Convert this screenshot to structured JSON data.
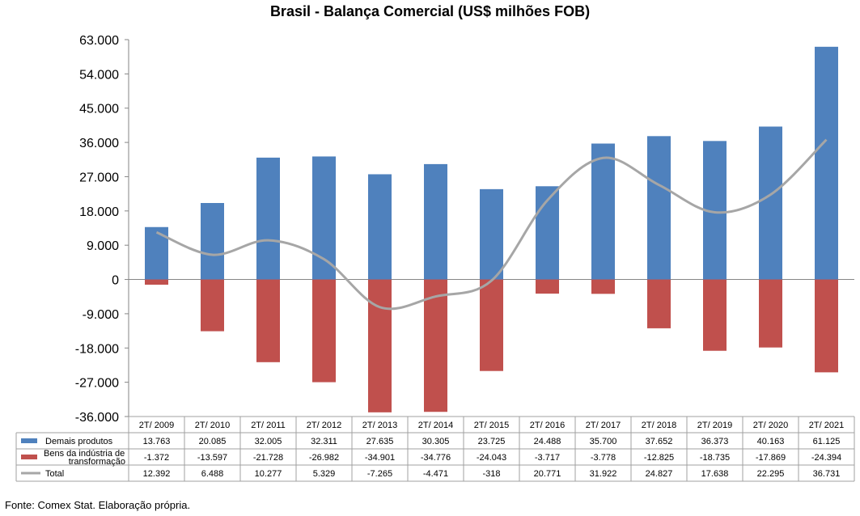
{
  "chart_data": {
    "type": "bar",
    "title": "Brasil - Balança Comercial (US$ milhões FOB)",
    "categories": [
      "2T/ 2009",
      "2T/ 2010",
      "2T/ 2011",
      "2T/ 2012",
      "2T/ 2013",
      "2T/ 2014",
      "2T/ 2015",
      "2T/ 2016",
      "2T/ 2017",
      "2T/ 2018",
      "2T/ 2019",
      "2T/ 2020",
      "2T/ 2021"
    ],
    "ylim": [
      -36000,
      63000
    ],
    "yticks": [
      63000,
      54000,
      45000,
      36000,
      27000,
      18000,
      9000,
      0,
      -9000,
      -18000,
      -27000,
      -36000
    ],
    "ytick_labels": [
      "63.000",
      "54.000",
      "45.000",
      "36.000",
      "27.000",
      "18.000",
      "9.000",
      "0",
      "-9.000",
      "-18.000",
      "-27.000",
      "-36.000"
    ],
    "grid": false,
    "legend": "data-table",
    "series": [
      {
        "name": "Demais produtos",
        "type": "bar",
        "color": "#4F81BD",
        "values": [
          13763,
          20085,
          32005,
          32311,
          27635,
          30305,
          23725,
          24488,
          35700,
          37652,
          36373,
          40163,
          61125
        ],
        "labels": [
          "13.763",
          "20.085",
          "32.005",
          "32.311",
          "27.635",
          "30.305",
          "23.725",
          "24.488",
          "35.700",
          "37.652",
          "36.373",
          "40.163",
          "61.125"
        ]
      },
      {
        "name": "Bens da indústria de transformação",
        "name_lines": [
          "Bens da indústria de",
          "transformação"
        ],
        "type": "bar",
        "color": "#C0504D",
        "values": [
          -1372,
          -13597,
          -21728,
          -26982,
          -34901,
          -34776,
          -24043,
          -3717,
          -3778,
          -12825,
          -18735,
          -17869,
          -24394
        ],
        "labels": [
          "-1.372",
          "-13.597",
          "-21.728",
          "-26.982",
          "-34.901",
          "-34.776",
          "-24.043",
          "-3.717",
          "-3.778",
          "-12.825",
          "-18.735",
          "-17.869",
          "-24.394"
        ]
      },
      {
        "name": "Total",
        "type": "line",
        "color": "#A6A6A6",
        "values": [
          12392,
          6488,
          10277,
          5329,
          -7265,
          -4471,
          -318,
          20771,
          31922,
          24827,
          17638,
          22295,
          36731
        ],
        "labels": [
          "12.392",
          "6.488",
          "10.277",
          "5.329",
          "-7.265",
          "-4.471",
          "-318",
          "20.771",
          "31.922",
          "24.827",
          "17.638",
          "22.295",
          "36.731"
        ]
      }
    ]
  },
  "source": "Fonte: Comex Stat. Elaboração própria."
}
